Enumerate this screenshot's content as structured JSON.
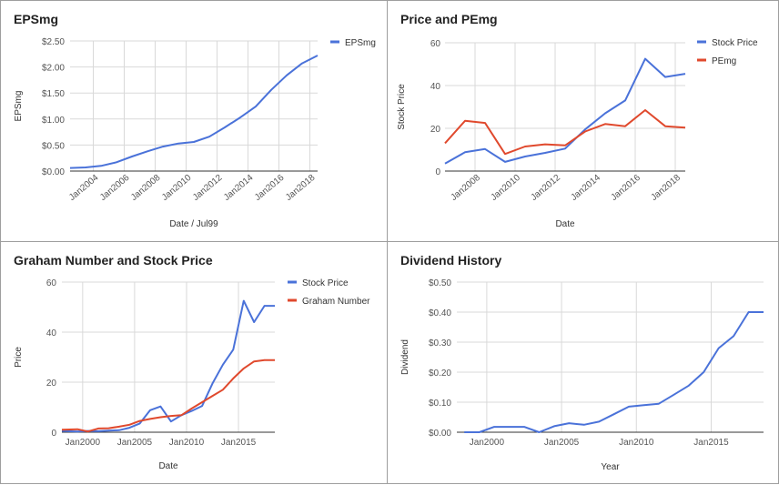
{
  "colors": {
    "blue": "#4a72d9",
    "red": "#e0492d",
    "grid": "#d9d9d9",
    "axis": "#333333",
    "text": "#555555"
  },
  "chart_data": [
    {
      "type": "line",
      "title": "EPSmg",
      "xlabel": "Date / Jul99",
      "ylabel": "EPSmg",
      "xlim": [
        2002.5,
        2018.5
      ],
      "ylim": [
        0,
        2.5
      ],
      "ytick_values": [
        0,
        0.5,
        1.0,
        1.5,
        2.0,
        2.5
      ],
      "ytick_labels": [
        "$0.00",
        "$0.50",
        "$1.00",
        "$1.50",
        "$2.00",
        "$2.50"
      ],
      "xtick_values": [
        2004,
        2006,
        2008,
        2010,
        2012,
        2014,
        2016,
        2018
      ],
      "xtick_labels": [
        "Jan2004",
        "Jan2006",
        "Jan2008",
        "Jan2010",
        "Jan2012",
        "Jan2014",
        "Jan2016",
        "Jan2018"
      ],
      "legend_position": "top-right",
      "series": [
        {
          "name": "EPSmg",
          "color": "#4a72d9",
          "x": [
            2002.5,
            2003.5,
            2004.5,
            2005.5,
            2006.5,
            2007.5,
            2008.5,
            2009.5,
            2010.5,
            2011.5,
            2012.5,
            2013.5,
            2014.5,
            2015.5,
            2016.5,
            2017.5,
            2018.5
          ],
          "y": [
            0.06,
            0.07,
            0.1,
            0.17,
            0.28,
            0.38,
            0.47,
            0.53,
            0.56,
            0.66,
            0.84,
            1.03,
            1.24,
            1.56,
            1.84,
            2.07,
            2.22
          ]
        }
      ]
    },
    {
      "type": "line",
      "title": "Price and PEmg",
      "xlabel": "Date",
      "ylabel": "Stock Price",
      "xlim": [
        2006.5,
        2018.5
      ],
      "ylim": [
        0,
        60
      ],
      "ytick_values": [
        0,
        20,
        40,
        60
      ],
      "ytick_labels": [
        "0",
        "20",
        "40",
        "60"
      ],
      "xtick_values": [
        2008,
        2010,
        2012,
        2014,
        2016,
        2018
      ],
      "xtick_labels": [
        "Jan2008",
        "Jan2010",
        "Jan2012",
        "Jan2014",
        "Jan2016",
        "Jan2018"
      ],
      "legend_position": "top-right",
      "series": [
        {
          "name": "Stock Price",
          "color": "#4a72d9",
          "x": [
            2006.5,
            2007.5,
            2008.5,
            2009.5,
            2010.5,
            2011.5,
            2012.5,
            2013.5,
            2014.5,
            2015.5,
            2016.5,
            2017.5,
            2018.5
          ],
          "y": [
            3.5,
            8.8,
            10.3,
            4.3,
            6.8,
            8.5,
            10.5,
            19.5,
            27.0,
            33.0,
            52.5,
            44.0,
            45.5
          ]
        },
        {
          "name": "PEmg",
          "color": "#e0492d",
          "x": [
            2006.5,
            2007.5,
            2008.5,
            2009.5,
            2010.5,
            2011.5,
            2012.5,
            2013.5,
            2014.5,
            2015.5,
            2016.5,
            2017.5,
            2018.5
          ],
          "y": [
            13.0,
            23.5,
            22.5,
            8.0,
            11.5,
            12.5,
            12.0,
            18.5,
            22.0,
            21.0,
            28.5,
            21.0,
            20.3
          ]
        }
      ]
    },
    {
      "type": "line",
      "title": "Graham Number and Stock Price",
      "xlabel": "Date",
      "ylabel": "Price",
      "xlim": [
        1998,
        2018.5
      ],
      "ylim": [
        0,
        60
      ],
      "ytick_values": [
        0,
        20,
        40,
        60
      ],
      "ytick_labels": [
        "0",
        "20",
        "40",
        "60"
      ],
      "xtick_values": [
        2000,
        2005,
        2010,
        2015
      ],
      "xtick_labels": [
        "Jan2000",
        "Jan2005",
        "Jan2010",
        "Jan2015"
      ],
      "legend_position": "top-right",
      "series": [
        {
          "name": "Stock Price",
          "color": "#4a72d9",
          "x": [
            1998,
            1999.5,
            2000.5,
            2001.5,
            2002.5,
            2003.5,
            2004.5,
            2005.5,
            2006.5,
            2007.5,
            2008.5,
            2009.5,
            2010.5,
            2011.5,
            2012.5,
            2013.5,
            2014.5,
            2015.5,
            2016.5,
            2017.5,
            2018.5
          ],
          "y": [
            0.5,
            0.3,
            0.5,
            0.4,
            0.6,
            0.8,
            1.8,
            3.5,
            8.8,
            10.3,
            4.3,
            6.8,
            8.5,
            10.5,
            19.5,
            27.0,
            33.0,
            52.5,
            44.0,
            50.5,
            50.5
          ]
        },
        {
          "name": "Graham Number",
          "color": "#e0492d",
          "x": [
            1998,
            1999.5,
            2000.5,
            2001.5,
            2002.5,
            2003.5,
            2004.5,
            2005.5,
            2006.5,
            2007.5,
            2008.5,
            2009.5,
            2010.5,
            2011.5,
            2012.5,
            2013.5,
            2014.5,
            2015.5,
            2016.5,
            2017.5,
            2018.5
          ],
          "y": [
            1.0,
            1.2,
            0.3,
            1.5,
            1.6,
            2.2,
            3.0,
            4.5,
            5.3,
            6.0,
            6.5,
            6.8,
            9.5,
            12.0,
            14.5,
            17.0,
            21.5,
            25.5,
            28.3,
            28.8,
            28.8
          ]
        }
      ]
    },
    {
      "type": "line",
      "title": "Dividend History",
      "xlabel": "Year",
      "ylabel": "Dividend",
      "xlim": [
        1998,
        2018.5
      ],
      "ylim": [
        0,
        0.5
      ],
      "ytick_values": [
        0,
        0.1,
        0.2,
        0.3,
        0.4,
        0.5
      ],
      "ytick_labels": [
        "$0.00",
        "$0.10",
        "$0.20",
        "$0.30",
        "$0.40",
        "$0.50"
      ],
      "xtick_values": [
        2000,
        2005,
        2010,
        2015
      ],
      "xtick_labels": [
        "Jan2000",
        "Jan2005",
        "Jan2010",
        "Jan2015"
      ],
      "series": [
        {
          "name": "Dividend",
          "color": "#4a72d9",
          "x": [
            1998.5,
            1999.5,
            2000.5,
            2001.5,
            2002.5,
            2003.5,
            2004.5,
            2005.5,
            2006.5,
            2007.5,
            2008.5,
            2009.5,
            2010.5,
            2011.5,
            2012.5,
            2013.5,
            2014.5,
            2015.5,
            2016.5,
            2017.5,
            2018.5
          ],
          "y": [
            0.0,
            0.0,
            0.018,
            0.018,
            0.018,
            0.0,
            0.02,
            0.03,
            0.025,
            0.035,
            0.06,
            0.085,
            0.09,
            0.095,
            0.125,
            0.155,
            0.2,
            0.28,
            0.32,
            0.4,
            0.4
          ]
        }
      ]
    }
  ]
}
